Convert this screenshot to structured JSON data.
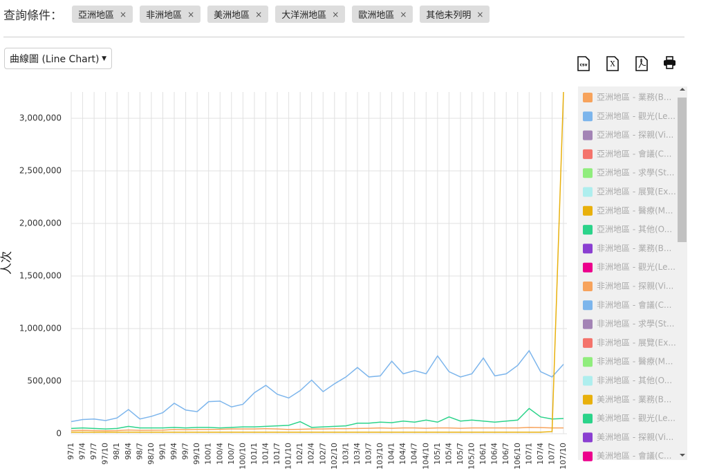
{
  "filters": {
    "label": "查詢條件：",
    "chips": [
      "亞洲地區",
      "非洲地區",
      "美洲地區",
      "大洋洲地區",
      "歐洲地區",
      "其他未列明"
    ],
    "remove": "×"
  },
  "chart_type_select": {
    "label": "曲線圖 (Line Chart)",
    "arrow": "▼"
  },
  "toolbar": {
    "csv": "csv",
    "excel": "X"
  },
  "legend": [
    {
      "name": "亞洲地區 - 業務(B...",
      "color": "#f7a35c"
    },
    {
      "name": "亞洲地區 - 觀光(Le...",
      "color": "#7cb5ec"
    },
    {
      "name": "亞洲地區 - 探親(Vi...",
      "color": "#a383b5"
    },
    {
      "name": "亞洲地區 - 會議(C...",
      "color": "#f4736b"
    },
    {
      "name": "亞洲地區 - 求學(St...",
      "color": "#90ed7d"
    },
    {
      "name": "亞洲地區 - 展覽(Ex...",
      "color": "#aeeeee"
    },
    {
      "name": "亞洲地區 - 醫療(M...",
      "color": "#e8b00c"
    },
    {
      "name": "亞洲地區 - 其他(O...",
      "color": "#2bd38a"
    },
    {
      "name": "非洲地區 - 業務(B...",
      "color": "#8a3fd1"
    },
    {
      "name": "非洲地區 - 觀光(Le...",
      "color": "#ec008c"
    },
    {
      "name": "非洲地區 - 探親(Vi...",
      "color": "#f7a35c"
    },
    {
      "name": "非洲地區 - 會議(C...",
      "color": "#7cb5ec"
    },
    {
      "name": "非洲地區 - 求學(St...",
      "color": "#a383b5"
    },
    {
      "name": "非洲地區 - 展覽(Ex...",
      "color": "#f4736b"
    },
    {
      "name": "非洲地區 - 醫療(M...",
      "color": "#90ed7d"
    },
    {
      "name": "非洲地區 - 其他(O...",
      "color": "#aeeeee"
    },
    {
      "name": "美洲地區 - 業務(B...",
      "color": "#e8b00c"
    },
    {
      "name": "美洲地區 - 觀光(Le...",
      "color": "#2bd38a"
    },
    {
      "name": "美洲地區 - 探親(Vi...",
      "color": "#8a3fd1"
    },
    {
      "name": "美洲地區 - 會議(C...",
      "color": "#ec008c"
    }
  ],
  "chart_data": {
    "type": "line",
    "y_label": "人次",
    "categories": [
      "97/1",
      "97/4",
      "97/7",
      "97/10",
      "98/1",
      "98/4",
      "98/7",
      "98/10",
      "99/1",
      "99/4",
      "99/7",
      "99/10",
      "100/1",
      "100/4",
      "100/7",
      "100/10",
      "101/1",
      "101/4",
      "101/7",
      "101/10",
      "102/1",
      "102/4",
      "102/7",
      "102/10",
      "103/1",
      "103/4",
      "103/7",
      "103/10",
      "104/1",
      "104/4",
      "104/7",
      "104/10",
      "105/1",
      "105/4",
      "105/7",
      "105/10",
      "106/1",
      "106/4",
      "106/7",
      "106/10",
      "107/1",
      "107/4",
      "107/7",
      "107/10"
    ],
    "ylim": [
      0,
      3250000
    ],
    "yticks": [
      0,
      {
        "value": 500000,
        "label": "500,000"
      },
      {
        "value": 1000000,
        "label": "1,000,000"
      },
      {
        "value": 1500000,
        "label": "1,500,000"
      },
      {
        "value": 2000000,
        "label": "2,000,000"
      },
      {
        "value": 2500000,
        "label": "2,500,000"
      },
      {
        "value": 3000000,
        "label": "3,000,000"
      }
    ],
    "grid": true,
    "series": [
      {
        "name": "亞洲地區 - 業務",
        "color": "#f7a35c",
        "values": [
          30000,
          32000,
          30000,
          28000,
          30000,
          35000,
          32000,
          33000,
          34000,
          40000,
          38000,
          40000,
          40000,
          42000,
          45000,
          45000,
          45000,
          48000,
          45000,
          40000,
          42000,
          45000,
          45000,
          48000,
          48000,
          50000,
          52000,
          55000,
          52000,
          55000,
          55000,
          52000,
          55000,
          55000,
          52000,
          55000,
          55000,
          55000,
          55000,
          55000,
          60000,
          58000,
          55000,
          55000
        ]
      },
      {
        "name": "亞洲地區 - 觀光",
        "color": "#7cb5ec",
        "values": [
          115000,
          135000,
          140000,
          125000,
          150000,
          230000,
          140000,
          165000,
          200000,
          290000,
          225000,
          210000,
          305000,
          310000,
          255000,
          280000,
          390000,
          460000,
          375000,
          340000,
          410000,
          510000,
          400000,
          475000,
          540000,
          630000,
          540000,
          550000,
          690000,
          570000,
          600000,
          570000,
          740000,
          590000,
          540000,
          570000,
          720000,
          550000,
          570000,
          650000,
          790000,
          590000,
          540000,
          660000
        ]
      },
      {
        "name": "亞洲地區 - 其他",
        "color": "#2bd38a",
        "values": [
          50000,
          55000,
          50000,
          45000,
          50000,
          70000,
          55000,
          55000,
          55000,
          60000,
          55000,
          60000,
          60000,
          55000,
          60000,
          65000,
          65000,
          70000,
          75000,
          80000,
          115000,
          60000,
          65000,
          70000,
          75000,
          100000,
          100000,
          110000,
          105000,
          120000,
          110000,
          130000,
          110000,
          160000,
          120000,
          130000,
          120000,
          110000,
          120000,
          130000,
          240000,
          160000,
          140000,
          145000
        ]
      },
      {
        "name": "亞洲地區 - 醫療",
        "color": "#e8b00c",
        "values": [
          15000,
          15000,
          15000,
          15000,
          15000,
          15000,
          15000,
          15000,
          15000,
          15000,
          15000,
          15000,
          15000,
          15000,
          15000,
          15000,
          15000,
          15000,
          15000,
          15000,
          15000,
          15000,
          15000,
          15000,
          15000,
          15000,
          15000,
          15000,
          15000,
          15000,
          15000,
          15000,
          15000,
          15000,
          15000,
          15000,
          15000,
          15000,
          15000,
          15000,
          15000,
          15000,
          20000,
          3250000
        ]
      }
    ]
  }
}
